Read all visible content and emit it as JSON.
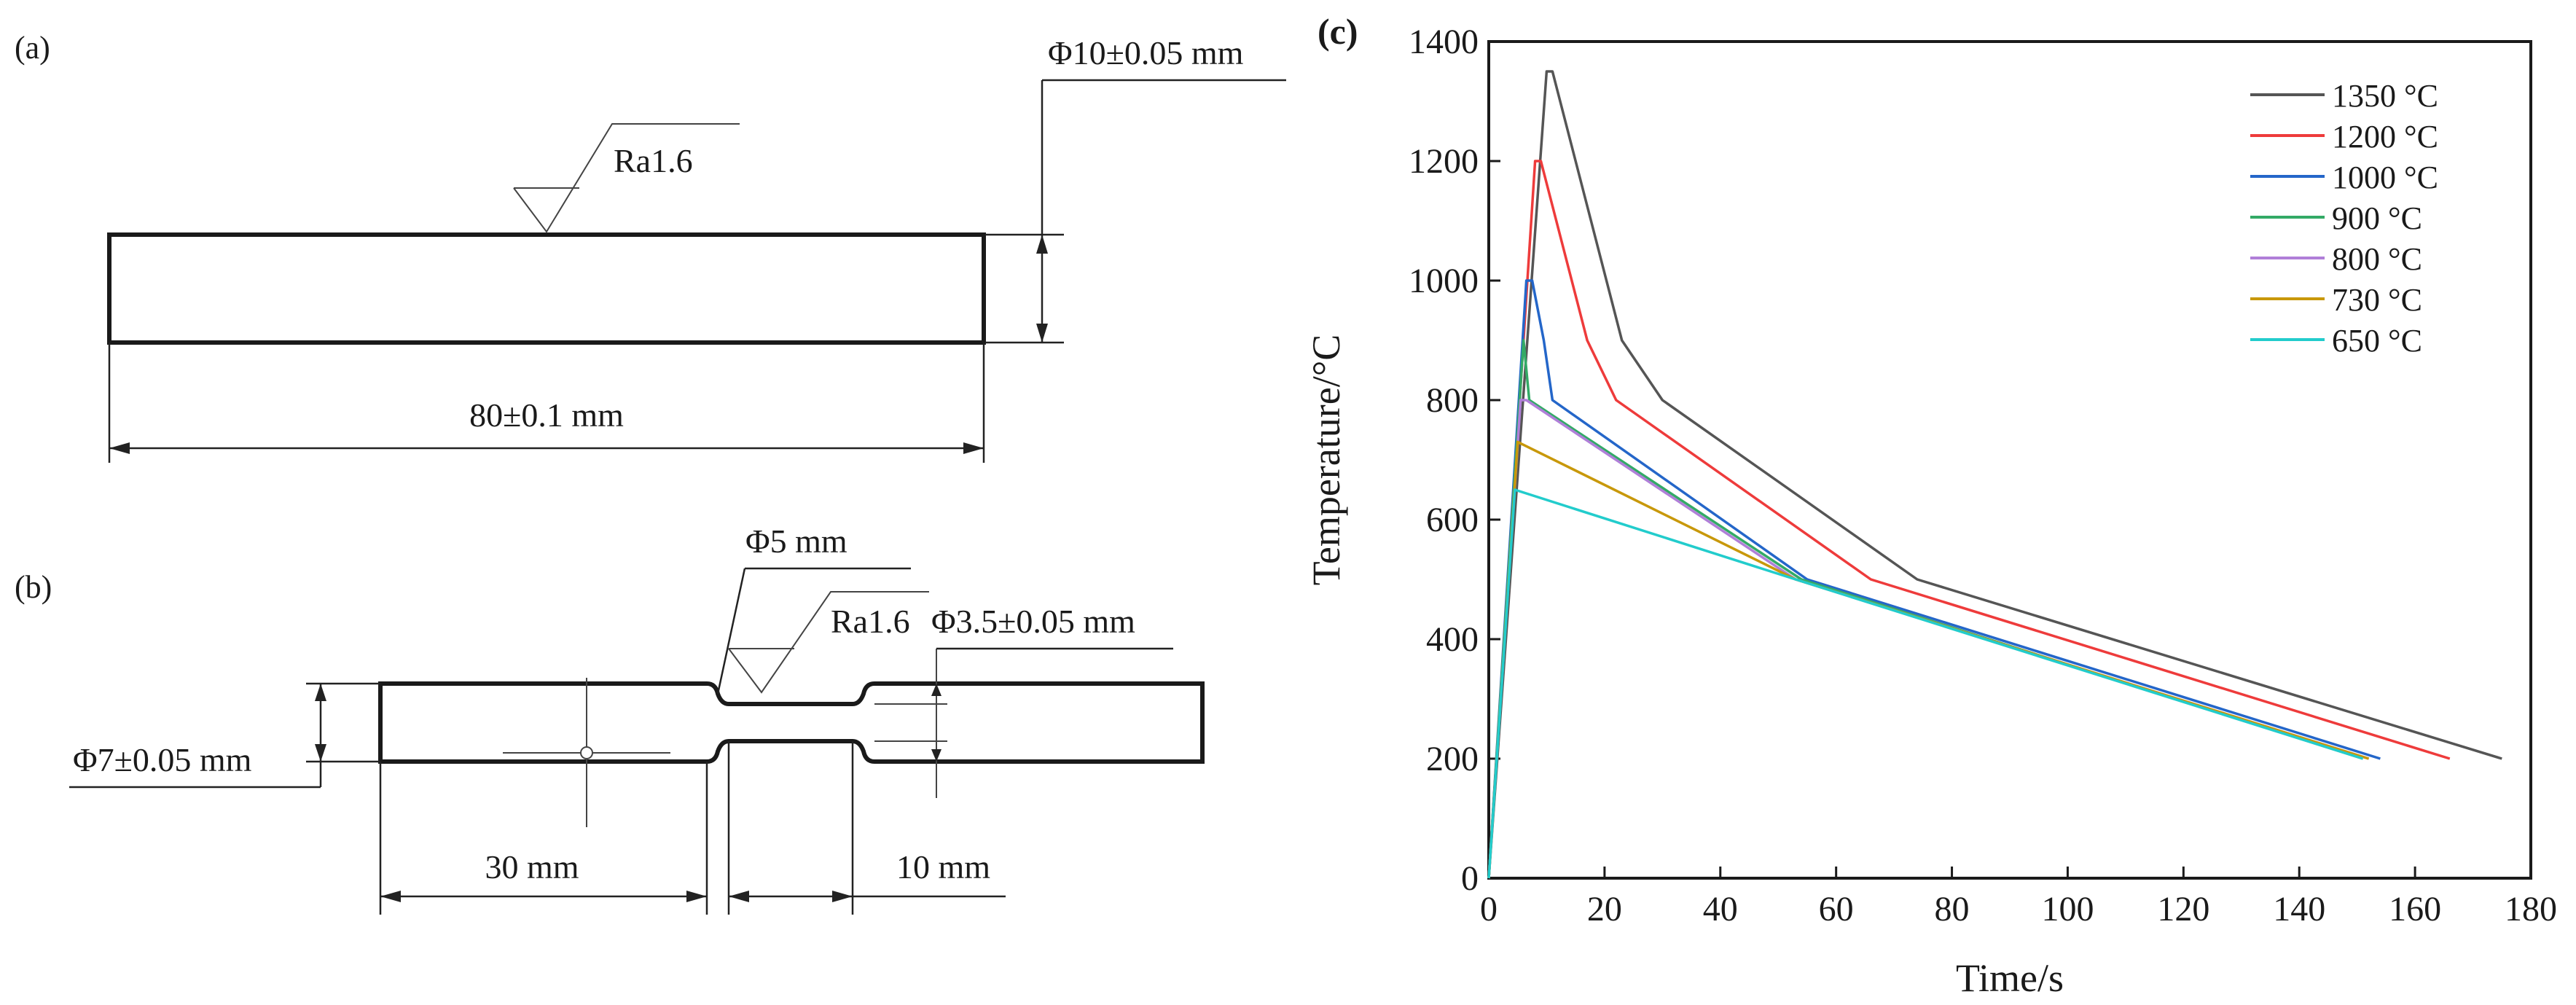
{
  "panel_a": {
    "label": "(a)",
    "roughness": "Ra1.6",
    "diameter": "Φ10±0.05 mm",
    "length": "80±0.1 mm"
  },
  "panel_b": {
    "label": "(b)",
    "diameter_neck": "Φ5 mm",
    "roughness": "Ra1.6",
    "diameter_gauge": "Φ3.5±0.05 mm",
    "diameter_grip": "Φ7±0.05 mm",
    "length_grip": "30 mm",
    "length_gauge": "10 mm"
  },
  "chart_data": {
    "label": "(c)",
    "type": "line",
    "xlabel": "Time/s",
    "ylabel": "Temperature/°C",
    "xlim": [
      0,
      180
    ],
    "ylim": [
      0,
      1400
    ],
    "xticks": [
      0,
      20,
      40,
      60,
      80,
      100,
      120,
      140,
      160,
      180
    ],
    "yticks": [
      0,
      200,
      400,
      600,
      800,
      1000,
      1200,
      1400
    ],
    "legend_position": "top-right",
    "series": [
      {
        "name": "1350 °C",
        "color": "#555555",
        "points": [
          [
            0,
            0
          ],
          [
            10,
            1350
          ],
          [
            11,
            1350
          ],
          [
            23,
            900
          ],
          [
            30,
            800
          ],
          [
            74,
            500
          ],
          [
            175,
            200
          ]
        ]
      },
      {
        "name": "1200 °C",
        "color": "#ee3b3b",
        "points": [
          [
            0,
            0
          ],
          [
            8,
            1200
          ],
          [
            9,
            1200
          ],
          [
            17,
            900
          ],
          [
            22,
            800
          ],
          [
            66,
            500
          ],
          [
            166,
            200
          ]
        ]
      },
      {
        "name": "1000 °C",
        "color": "#2466c9",
        "points": [
          [
            0,
            0
          ],
          [
            6.5,
            1000
          ],
          [
            7.5,
            1000
          ],
          [
            9.5,
            900
          ],
          [
            11,
            800
          ],
          [
            55,
            500
          ],
          [
            154,
            200
          ]
        ]
      },
      {
        "name": "900 °C",
        "color": "#33aa66",
        "points": [
          [
            0,
            0
          ],
          [
            6,
            900
          ],
          [
            7,
            800
          ],
          [
            54,
            500
          ],
          [
            151,
            200
          ]
        ]
      },
      {
        "name": "800 °C",
        "color": "#b07fd8",
        "points": [
          [
            0,
            0
          ],
          [
            5.5,
            800
          ],
          [
            6.5,
            800
          ],
          [
            53,
            500
          ],
          [
            152,
            200
          ]
        ]
      },
      {
        "name": "730 °C",
        "color": "#c8980a",
        "points": [
          [
            0,
            0
          ],
          [
            5,
            730
          ],
          [
            53,
            500
          ],
          [
            152,
            200
          ]
        ]
      },
      {
        "name": "650 °C",
        "color": "#22cccc",
        "points": [
          [
            0,
            0
          ],
          [
            4.5,
            650
          ],
          [
            53,
            500
          ],
          [
            151,
            200
          ]
        ]
      }
    ]
  }
}
